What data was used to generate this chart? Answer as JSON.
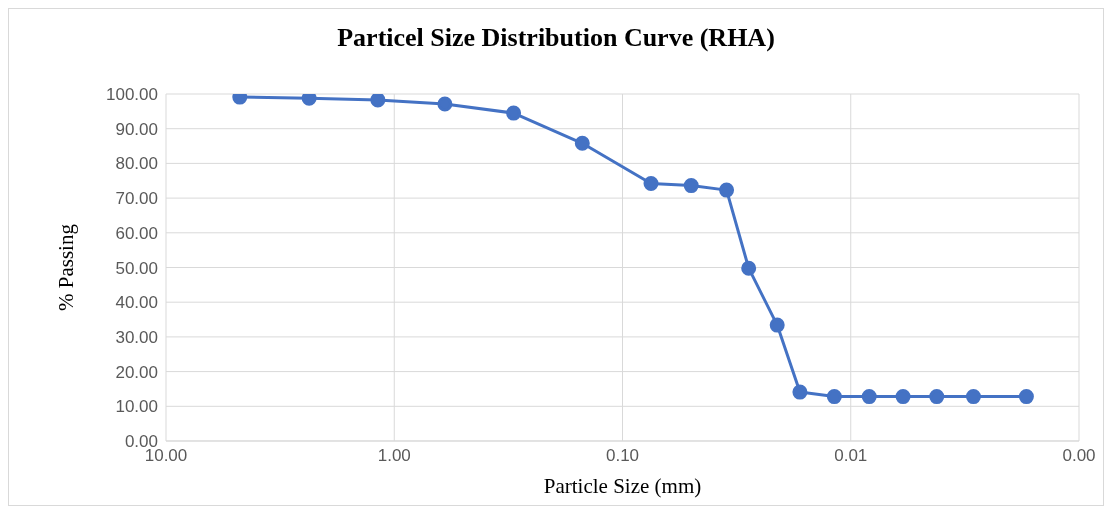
{
  "chart_data": {
    "type": "line",
    "title": "Particel Size Distribution Curve (RHA)",
    "xlabel": "Particle Size (mm)",
    "ylabel": "% Passing",
    "x": [
      4.75,
      2.36,
      1.18,
      0.6,
      0.3,
      0.15,
      0.075,
      0.05,
      0.035,
      0.028,
      0.021,
      0.0167,
      0.0118,
      0.0083,
      0.0059,
      0.0042,
      0.0029,
      0.0017
    ],
    "series": [
      {
        "color": "#4472c4",
        "values": [
          99.1,
          98.8,
          98.3,
          97.1,
          94.5,
          85.8,
          74.2,
          73.6,
          72.3,
          49.8,
          33.4,
          14.1,
          12.8,
          12.8,
          12.8,
          12.8,
          12.8,
          12.8
        ]
      }
    ],
    "log": "x",
    "xlim": [
      10,
      0.001
    ],
    "xticks": [
      {
        "value": 10,
        "label": "10.00"
      },
      {
        "value": 1,
        "label": "1.00"
      },
      {
        "value": 0.1,
        "label": "0.10"
      },
      {
        "value": 0.01,
        "label": "0.01"
      },
      {
        "value": 0.001,
        "label": "0.00"
      }
    ],
    "ylim": [
      0,
      100
    ],
    "yticks": [
      {
        "value": 0,
        "label": "0.00"
      },
      {
        "value": 10,
        "label": "10.00"
      },
      {
        "value": 20,
        "label": "20.00"
      },
      {
        "value": 30,
        "label": "30.00"
      },
      {
        "value": 40,
        "label": "40.00"
      },
      {
        "value": 50,
        "label": "50.00"
      },
      {
        "value": 60,
        "label": "60.00"
      },
      {
        "value": 70,
        "label": "70.00"
      },
      {
        "value": 80,
        "label": "80.00"
      },
      {
        "value": 90,
        "label": "90.00"
      },
      {
        "value": 100,
        "label": "100.00"
      }
    ],
    "grid": true,
    "marker": "circle",
    "line_style": "solid",
    "legend": false
  }
}
